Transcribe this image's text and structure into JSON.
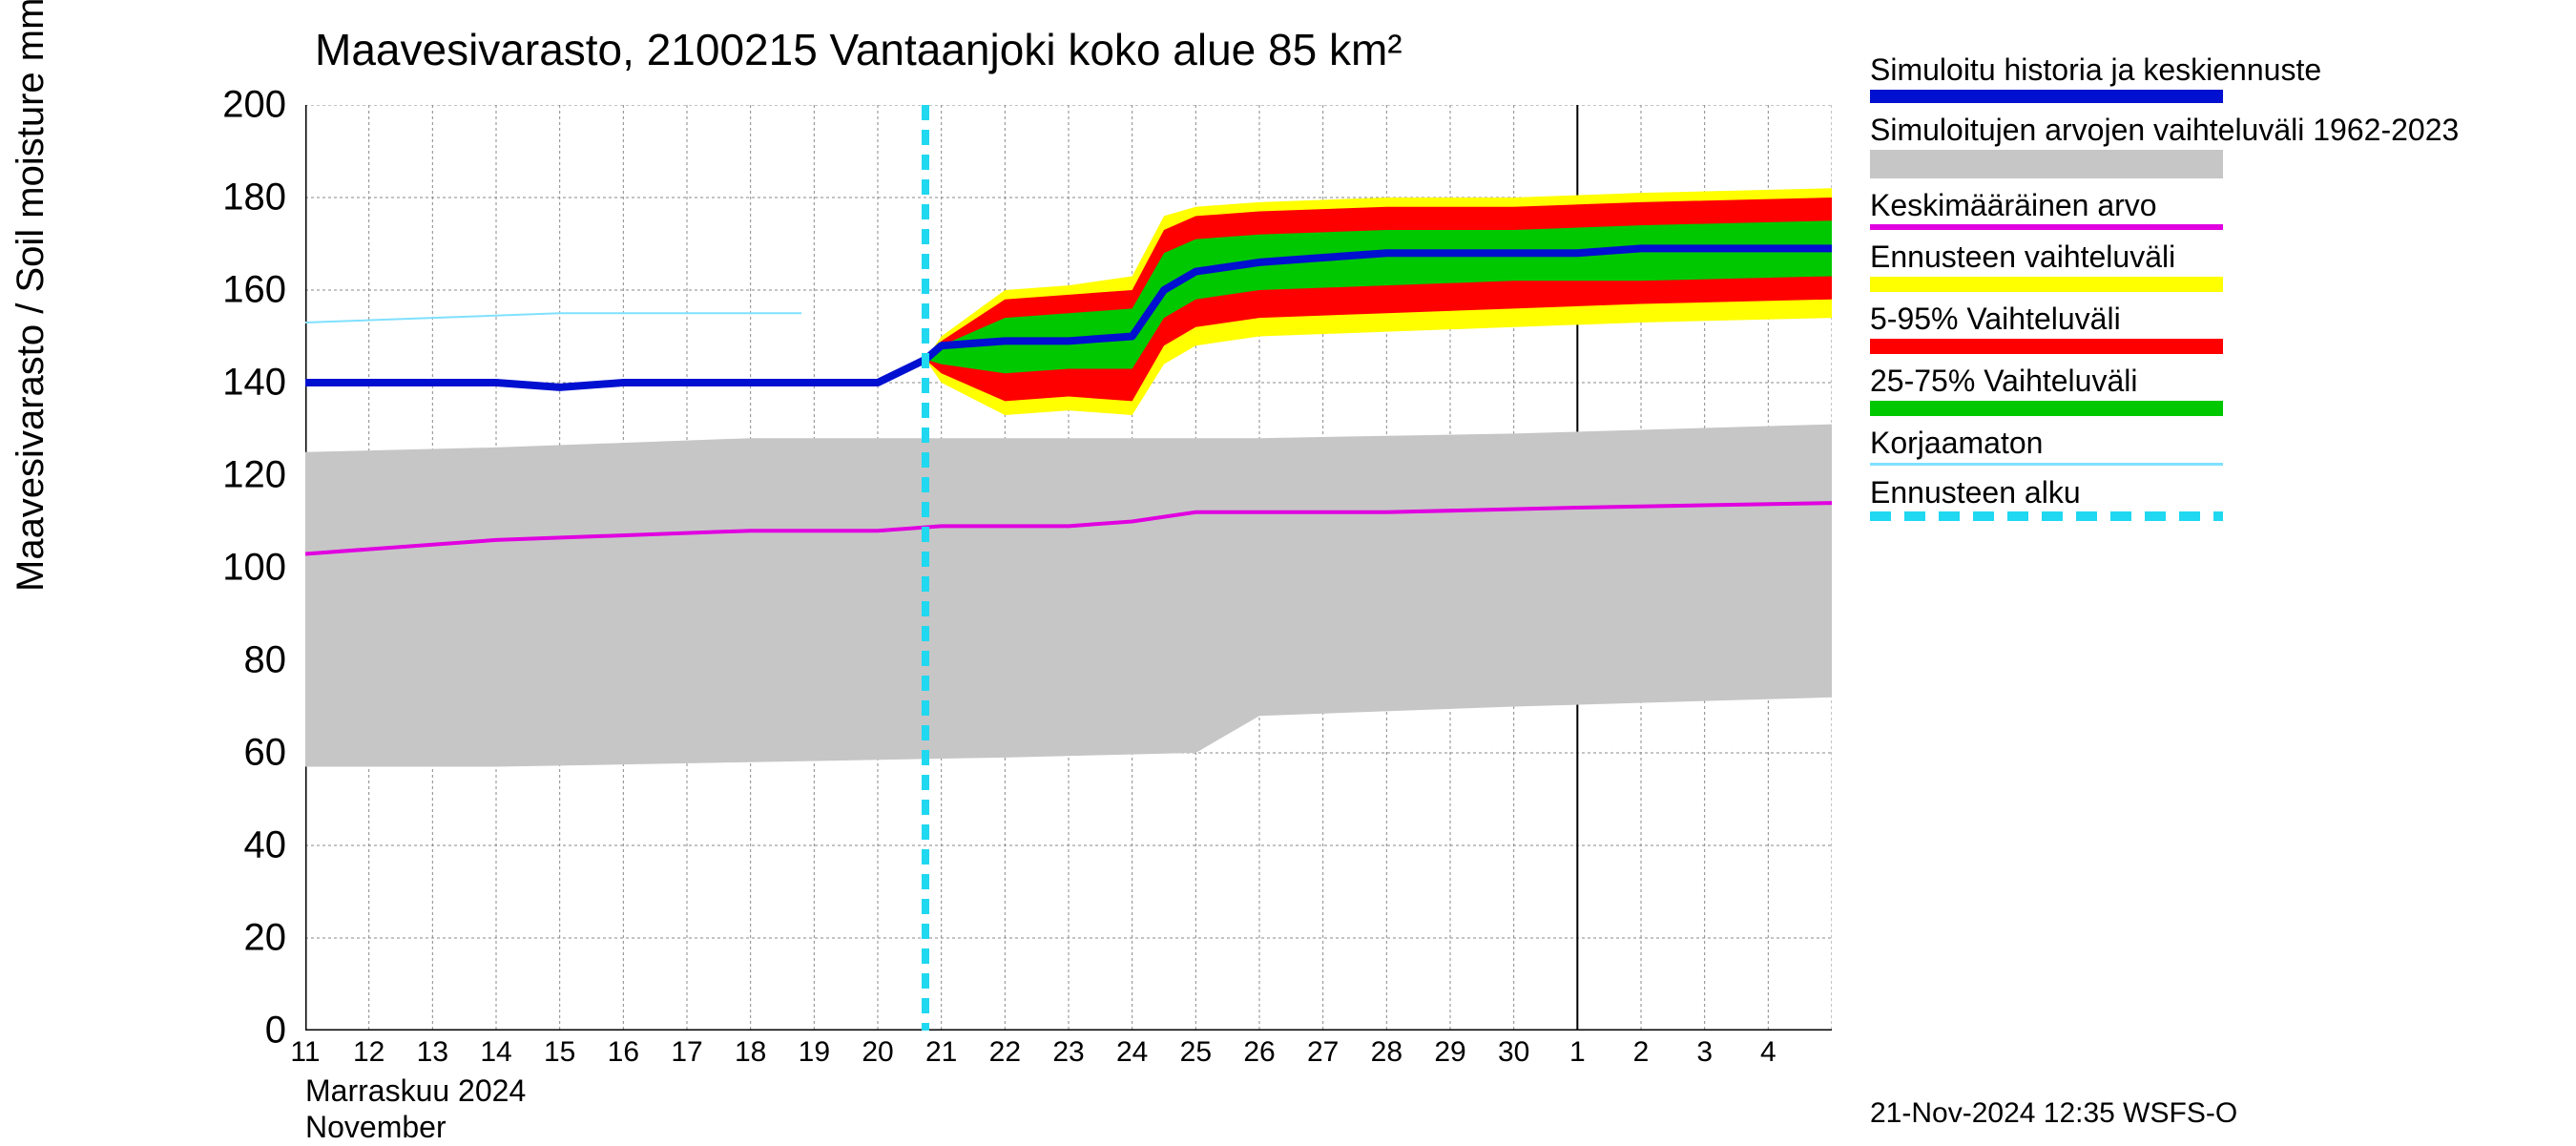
{
  "chart": {
    "type": "line-band-forecast",
    "title": "Maavesivarasto, 2100215 Vantaanjoki koko alue 85 km²",
    "y_axis_label": "Maavesivarasto / Soil moisture    mm",
    "title_fontsize": 46,
    "axis_label_fontsize": 40,
    "tick_fontsize": 40,
    "xtick_fontsize": 30,
    "background_color": "#ffffff",
    "grid_color": "#888888",
    "grid_dash": "3,3",
    "ylim": [
      0,
      200
    ],
    "yticks": [
      0,
      20,
      40,
      60,
      80,
      100,
      120,
      140,
      160,
      180,
      200
    ],
    "x_start_day": 11,
    "x_end_day_exclusive": 35,
    "xticks": [
      {
        "day": 11,
        "label": "11"
      },
      {
        "day": 12,
        "label": "12"
      },
      {
        "day": 13,
        "label": "13"
      },
      {
        "day": 14,
        "label": "14"
      },
      {
        "day": 15,
        "label": "15"
      },
      {
        "day": 16,
        "label": "16"
      },
      {
        "day": 17,
        "label": "17"
      },
      {
        "day": 18,
        "label": "18"
      },
      {
        "day": 19,
        "label": "19"
      },
      {
        "day": 20,
        "label": "20"
      },
      {
        "day": 21,
        "label": "21"
      },
      {
        "day": 22,
        "label": "22"
      },
      {
        "day": 23,
        "label": "23"
      },
      {
        "day": 24,
        "label": "24"
      },
      {
        "day": 25,
        "label": "25"
      },
      {
        "day": 26,
        "label": "26"
      },
      {
        "day": 27,
        "label": "27"
      },
      {
        "day": 28,
        "label": "28"
      },
      {
        "day": 29,
        "label": "29"
      },
      {
        "day": 30,
        "label": "30"
      },
      {
        "day": 31,
        "label": "1"
      },
      {
        "day": 32,
        "label": "2"
      },
      {
        "day": 33,
        "label": "3"
      },
      {
        "day": 34,
        "label": "4"
      }
    ],
    "x_month_boundary_day": 31,
    "x_month_label_line1": "Marraskuu 2024",
    "x_month_label_line2": "November",
    "timestamp": "21-Nov-2024 12:35 WSFS-O",
    "forecast_start_x": 20.75,
    "series": {
      "simulated_main": {
        "color": "#0010d0",
        "width": 8,
        "data": [
          [
            11,
            140
          ],
          [
            12,
            140
          ],
          [
            13,
            140
          ],
          [
            14,
            140
          ],
          [
            15,
            139
          ],
          [
            16,
            140
          ],
          [
            17,
            140
          ],
          [
            18,
            140
          ],
          [
            19,
            140
          ],
          [
            20,
            140
          ],
          [
            20.75,
            145
          ],
          [
            21,
            148
          ],
          [
            22,
            149
          ],
          [
            23,
            149
          ],
          [
            24,
            150
          ],
          [
            24.5,
            160
          ],
          [
            25,
            164
          ],
          [
            26,
            166
          ],
          [
            27,
            167
          ],
          [
            28,
            168
          ],
          [
            29,
            168
          ],
          [
            30,
            168
          ],
          [
            31,
            168
          ],
          [
            32,
            169
          ],
          [
            33,
            169
          ],
          [
            34,
            169
          ],
          [
            35,
            169
          ]
        ]
      },
      "historical_band": {
        "fill": "#c6c6c6",
        "upper": [
          [
            11,
            125
          ],
          [
            14,
            126
          ],
          [
            18,
            128
          ],
          [
            22,
            128
          ],
          [
            26,
            128
          ],
          [
            30,
            129
          ],
          [
            35,
            131
          ]
        ],
        "lower": [
          [
            11,
            57
          ],
          [
            14,
            57
          ],
          [
            18,
            58
          ],
          [
            22,
            59
          ],
          [
            25,
            60
          ],
          [
            26,
            68
          ],
          [
            30,
            70
          ],
          [
            35,
            72
          ]
        ]
      },
      "mean_historical": {
        "color": "#e000e0",
        "width": 4,
        "data": [
          [
            11,
            103
          ],
          [
            14,
            106
          ],
          [
            18,
            108
          ],
          [
            20,
            108
          ],
          [
            21,
            109
          ],
          [
            23,
            109
          ],
          [
            24,
            110
          ],
          [
            25,
            112
          ],
          [
            28,
            112
          ],
          [
            31,
            113
          ],
          [
            35,
            114
          ]
        ]
      },
      "uncorrected": {
        "color": "#80e0ff",
        "width": 2,
        "data": [
          [
            11,
            153
          ],
          [
            13,
            154
          ],
          [
            15,
            155
          ],
          [
            17,
            155
          ],
          [
            18.8,
            155
          ]
        ]
      },
      "outer_yellow": {
        "fill": "#ffff00",
        "upper": [
          [
            20.75,
            145
          ],
          [
            21,
            150
          ],
          [
            22,
            160
          ],
          [
            23,
            161
          ],
          [
            24,
            163
          ],
          [
            24.5,
            176
          ],
          [
            25,
            178
          ],
          [
            26,
            179
          ],
          [
            28,
            180
          ],
          [
            30,
            180
          ],
          [
            32,
            181
          ],
          [
            35,
            182
          ]
        ],
        "lower": [
          [
            20.75,
            145
          ],
          [
            21,
            140
          ],
          [
            22,
            133
          ],
          [
            23,
            134
          ],
          [
            24,
            133
          ],
          [
            24.5,
            144
          ],
          [
            25,
            148
          ],
          [
            26,
            150
          ],
          [
            28,
            151
          ],
          [
            30,
            152
          ],
          [
            32,
            153
          ],
          [
            35,
            154
          ]
        ]
      },
      "red_5_95": {
        "fill": "#ff0000",
        "upper": [
          [
            20.75,
            145
          ],
          [
            21,
            149
          ],
          [
            22,
            158
          ],
          [
            23,
            159
          ],
          [
            24,
            160
          ],
          [
            24.5,
            173
          ],
          [
            25,
            176
          ],
          [
            26,
            177
          ],
          [
            28,
            178
          ],
          [
            30,
            178
          ],
          [
            32,
            179
          ],
          [
            35,
            180
          ]
        ],
        "lower": [
          [
            20.75,
            145
          ],
          [
            21,
            142
          ],
          [
            22,
            136
          ],
          [
            23,
            137
          ],
          [
            24,
            136
          ],
          [
            24.5,
            148
          ],
          [
            25,
            152
          ],
          [
            26,
            154
          ],
          [
            28,
            155
          ],
          [
            30,
            156
          ],
          [
            32,
            157
          ],
          [
            35,
            158
          ]
        ]
      },
      "green_25_75": {
        "fill": "#00c800",
        "upper": [
          [
            20.75,
            145
          ],
          [
            21,
            148
          ],
          [
            22,
            154
          ],
          [
            23,
            155
          ],
          [
            24,
            156
          ],
          [
            24.5,
            168
          ],
          [
            25,
            171
          ],
          [
            26,
            172
          ],
          [
            28,
            173
          ],
          [
            30,
            173
          ],
          [
            32,
            174
          ],
          [
            35,
            175
          ]
        ],
        "lower": [
          [
            20.75,
            145
          ],
          [
            21,
            144
          ],
          [
            22,
            142
          ],
          [
            23,
            143
          ],
          [
            24,
            143
          ],
          [
            24.5,
            154
          ],
          [
            25,
            158
          ],
          [
            26,
            160
          ],
          [
            28,
            161
          ],
          [
            30,
            162
          ],
          [
            32,
            162
          ],
          [
            35,
            163
          ]
        ]
      },
      "forecast_start_line": {
        "color": "#20d8f0",
        "width": 8,
        "dash": "16,10"
      }
    },
    "legend": [
      {
        "label": "Simuloitu historia ja keskiennuste",
        "type": "solid",
        "color": "#0010d0",
        "h": 14
      },
      {
        "label": "Simuloitujen arvojen vaihteluväli 1962-2023",
        "type": "solid",
        "color": "#c6c6c6",
        "h": 30
      },
      {
        "label": "Keskimääräinen arvo",
        "type": "solid",
        "color": "#e000e0",
        "h": 6
      },
      {
        "label": "Ennusteen vaihteluväli",
        "type": "solid",
        "color": "#ffff00",
        "h": 16
      },
      {
        "label": "5-95% Vaihteluväli",
        "type": "solid",
        "color": "#ff0000",
        "h": 16
      },
      {
        "label": "25-75% Vaihteluväli",
        "type": "solid",
        "color": "#00c800",
        "h": 16
      },
      {
        "label": "Korjaamaton",
        "type": "solid",
        "color": "#80e0ff",
        "h": 3
      },
      {
        "label": "Ennusteen alku",
        "type": "dashed",
        "color": "#20d8f0",
        "h": 10
      }
    ]
  }
}
